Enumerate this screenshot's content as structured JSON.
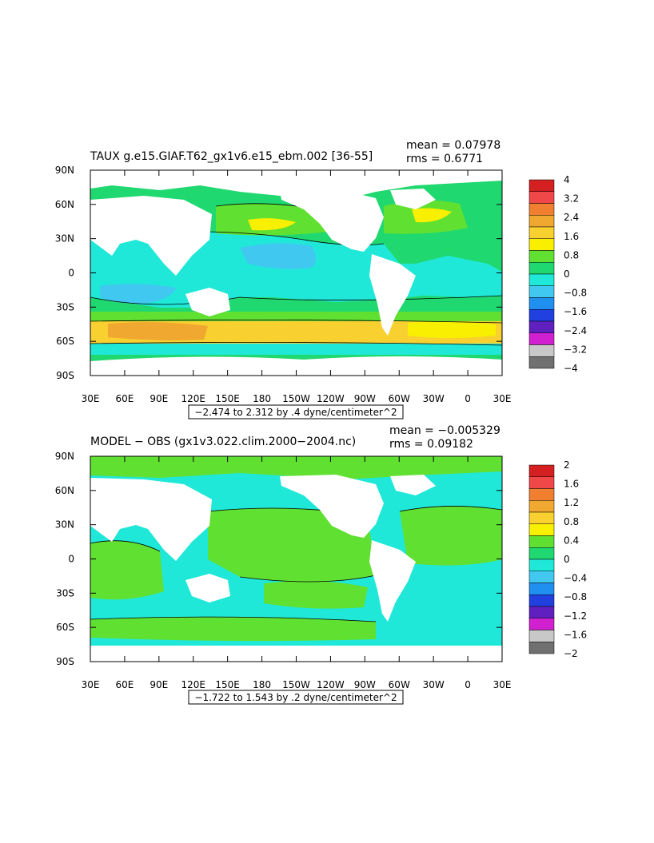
{
  "panels": [
    {
      "title": "TAUX g.e15.GIAF.T62_gx1v6.e15_ebm.002  [36-55]",
      "mean_label": "mean = 0.07978",
      "rms_label": "rms = 0.6771",
      "range_label": "−2.474 to 2.312 by .4 dyne/centimeter^2"
    },
    {
      "title": "MODEL − OBS (gx1v3.022.clim.2000−2004.nc)",
      "mean_label": "mean = −0.005329",
      "rms_label": "rms = 0.09182",
      "range_label": "−1.722 to 1.543 by .2 dyne/centimeter^2"
    }
  ],
  "chart_data": [
    {
      "type": "heatmap",
      "title": "TAUX g.e15.GIAF.T62_gx1v6.e15_ebm.002  [36-55]",
      "x_tick_labels": [
        "30E",
        "60E",
        "90E",
        "120E",
        "150E",
        "180",
        "150W",
        "120W",
        "90W",
        "60W",
        "30W",
        "0",
        "30E"
      ],
      "y_tick_labels": [
        "90N",
        "60N",
        "30N",
        "0",
        "30S",
        "60S",
        "90S"
      ],
      "colorbar": {
        "labels": [
          "4",
          "3.2",
          "2.4",
          "1.6",
          "0.8",
          "0",
          "−0.8",
          "−1.6",
          "−2.4",
          "−3.2",
          "−4"
        ],
        "colors": [
          "#d42020",
          "#f04848",
          "#f08030",
          "#f0a830",
          "#f8d030",
          "#f8f000",
          "#60e030",
          "#20d870",
          "#20e8d8",
          "#40c8f0",
          "#2090f0",
          "#2040e0",
          "#6020c0",
          "#d020d0",
          "#c8c8c8",
          "#707070"
        ]
      },
      "mean": 0.07978,
      "rms": 0.6771,
      "contour_range": [
        -2.474,
        2.312
      ],
      "contour_interval": 0.4,
      "units": "dyne/centimeter^2"
    },
    {
      "type": "heatmap",
      "title": "MODEL − OBS (gx1v3.022.clim.2000−2004.nc)",
      "x_tick_labels": [
        "30E",
        "60E",
        "90E",
        "120E",
        "150E",
        "180",
        "150W",
        "120W",
        "90W",
        "60W",
        "30W",
        "0",
        "30E"
      ],
      "y_tick_labels": [
        "90N",
        "60N",
        "30N",
        "0",
        "30S",
        "60S",
        "90S"
      ],
      "colorbar": {
        "labels": [
          "2",
          "1.6",
          "1.2",
          "0.8",
          "0.4",
          "0",
          "−0.4",
          "−0.8",
          "−1.2",
          "−1.6",
          "−2"
        ],
        "colors": [
          "#d42020",
          "#f04848",
          "#f08030",
          "#f0a830",
          "#f8d030",
          "#f8f000",
          "#60e030",
          "#20d870",
          "#20e8d8",
          "#40c8f0",
          "#2090f0",
          "#2040e0",
          "#6020c0",
          "#d020d0",
          "#c8c8c8",
          "#707070"
        ]
      },
      "mean": -0.005329,
      "rms": 0.09182,
      "contour_range": [
        -1.722,
        1.543
      ],
      "contour_interval": 0.2,
      "units": "dyne/centimeter^2"
    }
  ]
}
